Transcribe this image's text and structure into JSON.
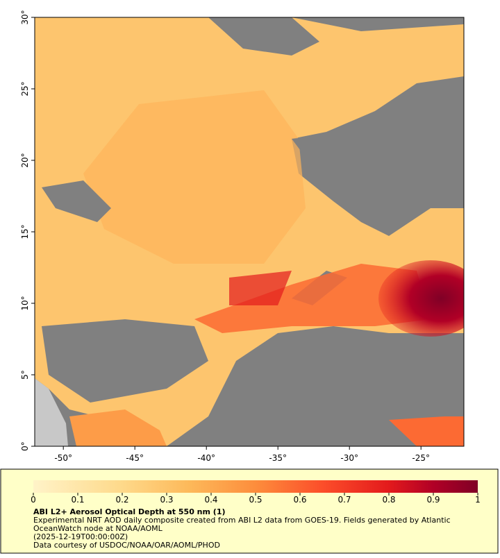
{
  "map": {
    "lonlim": [
      -52,
      -22
    ],
    "latlim": [
      0,
      30
    ],
    "lon_ticks": [
      {
        "value": -50,
        "label": "-50°"
      },
      {
        "value": -45,
        "label": "-45°"
      },
      {
        "value": -40,
        "label": "-40°"
      },
      {
        "value": -35,
        "label": "-35°"
      },
      {
        "value": -30,
        "label": "-30°"
      },
      {
        "value": -25,
        "label": "-25°"
      }
    ],
    "lat_ticks": [
      {
        "value": 0,
        "label": "0°"
      },
      {
        "value": 5,
        "label": "5°"
      },
      {
        "value": 10,
        "label": "10°"
      },
      {
        "value": 15,
        "label": "15°"
      },
      {
        "value": 20,
        "label": "20°"
      },
      {
        "value": 25,
        "label": "25°"
      },
      {
        "value": 30,
        "label": "30°"
      }
    ]
  },
  "colorbar": {
    "lim": [
      0,
      1
    ],
    "ticks": [
      0,
      0.1,
      0.2,
      0.3,
      0.4,
      0.5,
      0.6,
      0.7,
      0.8,
      0.9,
      1
    ],
    "title": "ABI L2+ Aerosol Optical Depth at 550 nm (1)",
    "notes": [
      "Experimental NRT AOD daily composite created from ABI L2 data from GOES-19. Fields generated by Atlantic",
      "OceanWatch node at NOAA/AOML",
      "(2025-12-19T00:00:00Z)",
      "Data courtesy of USDOC/NOAA/OAR/AOML/PHOD"
    ]
  }
}
